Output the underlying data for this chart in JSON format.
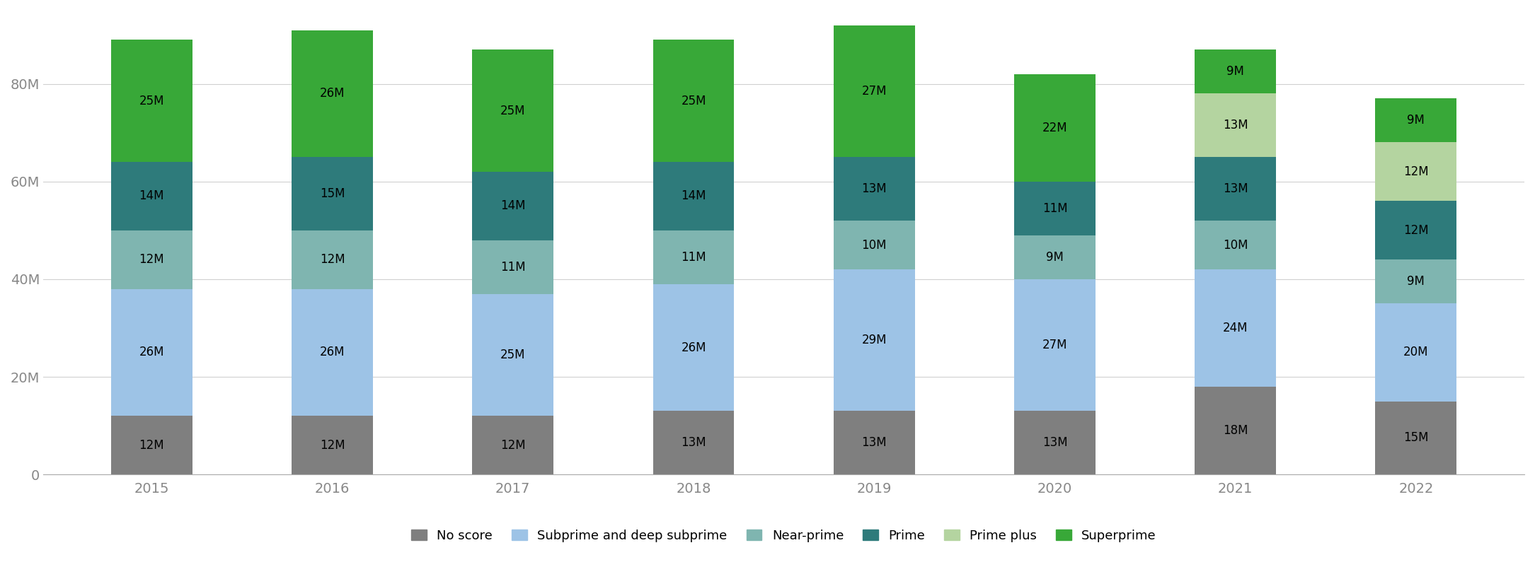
{
  "years": [
    "2015",
    "2016",
    "2017",
    "2018",
    "2019",
    "2020",
    "2021",
    "2022"
  ],
  "segments": {
    "No score": {
      "values": [
        12,
        12,
        12,
        13,
        13,
        13,
        18,
        15
      ],
      "color": "#7f7f7f"
    },
    "Subprime and deep subprime": {
      "values": [
        26,
        26,
        25,
        26,
        29,
        27,
        24,
        20
      ],
      "color": "#9dc3e6"
    },
    "Near-prime": {
      "values": [
        12,
        12,
        11,
        11,
        10,
        9,
        10,
        9
      ],
      "color": "#7fb5b0"
    },
    "Prime": {
      "values": [
        14,
        15,
        14,
        14,
        13,
        11,
        13,
        12
      ],
      "color": "#2e7b7b"
    },
    "Prime plus": {
      "values": [
        0,
        0,
        0,
        0,
        0,
        0,
        13,
        12
      ],
      "color": "#b4d4a0"
    },
    "Superprime": {
      "values": [
        25,
        26,
        25,
        25,
        27,
        22,
        9,
        9
      ],
      "color": "#38a838"
    }
  },
  "ylim": [
    0,
    95
  ],
  "yticks": [
    0,
    20,
    40,
    60,
    80
  ],
  "ytick_labels": [
    "0",
    "20M",
    "40M",
    "60M",
    "80M"
  ],
  "figsize": [
    21.69,
    8.19
  ],
  "dpi": 100,
  "bar_width": 0.45,
  "background_color": "#ffffff",
  "grid_color": "#d0d0d0",
  "legend_order": [
    "No score",
    "Subprime and deep subprime",
    "Near-prime",
    "Prime",
    "Prime plus",
    "Superprime"
  ],
  "label_fontsize": 12,
  "tick_fontsize": 14
}
